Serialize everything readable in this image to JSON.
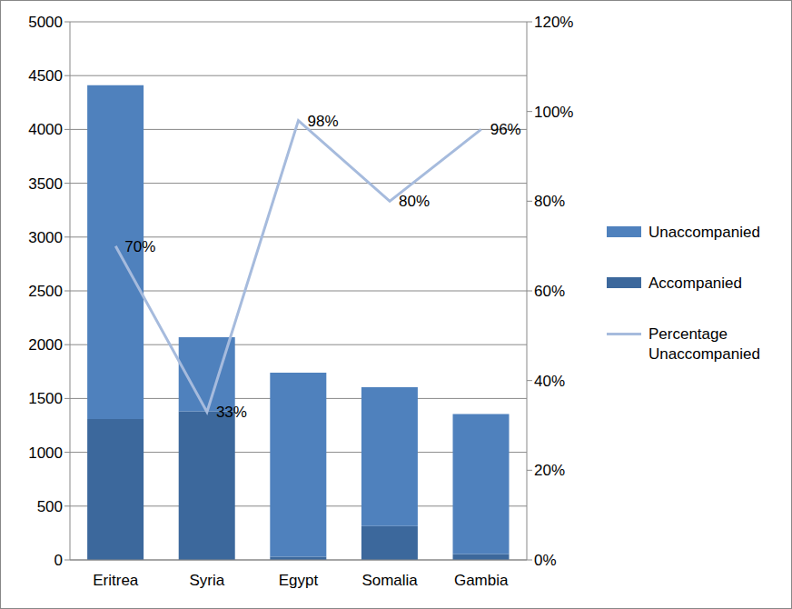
{
  "chart_data": {
    "type": "bar",
    "stacked": true,
    "grid": true,
    "legend": "right",
    "categories": [
      "Eritrea",
      "Syria",
      "Egypt",
      "Somalia",
      "Gambia"
    ],
    "series": [
      {
        "name": "Unaccompanied",
        "type": "bar",
        "color": "#4f81bd",
        "values": [
          3100,
          690,
          1710,
          1290,
          1300
        ]
      },
      {
        "name": "Accompanied",
        "type": "bar",
        "color": "#3c689c",
        "values": [
          1310,
          1380,
          30,
          315,
          55
        ]
      },
      {
        "name": "Percentage Unaccompanied",
        "type": "line",
        "axis": "y2",
        "color": "#a6bbdd",
        "marker": "none",
        "values": [
          70,
          33,
          98,
          80,
          96
        ],
        "value_labels": [
          "70%",
          "33%",
          "98%",
          "80%",
          "96%"
        ]
      }
    ],
    "ylim": [
      0,
      5000
    ],
    "yticks": [
      0,
      500,
      1000,
      1500,
      2000,
      2500,
      3000,
      3500,
      4000,
      4500,
      5000
    ],
    "y2lim": [
      0,
      120
    ],
    "y2ticks": [
      {
        "value": 0,
        "label": "0%"
      },
      {
        "value": 20,
        "label": "20%"
      },
      {
        "value": 40,
        "label": "40%"
      },
      {
        "value": 60,
        "label": "60%"
      },
      {
        "value": 80,
        "label": "80%"
      },
      {
        "value": 100,
        "label": "100%"
      },
      {
        "value": 120,
        "label": "120%"
      }
    ]
  }
}
